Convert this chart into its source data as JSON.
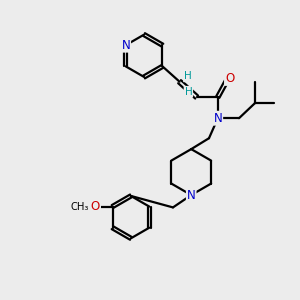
{
  "bg_color": "#ececec",
  "atom_color_N": "#0000cc",
  "atom_color_O": "#cc0000",
  "atom_color_H": "#009999",
  "bond_width": 1.6,
  "font_size_atoms": 8.5,
  "fig_size": [
    3.0,
    3.0
  ],
  "dpi": 100,
  "xlim": [
    0,
    10
  ],
  "ylim": [
    0,
    10
  ]
}
